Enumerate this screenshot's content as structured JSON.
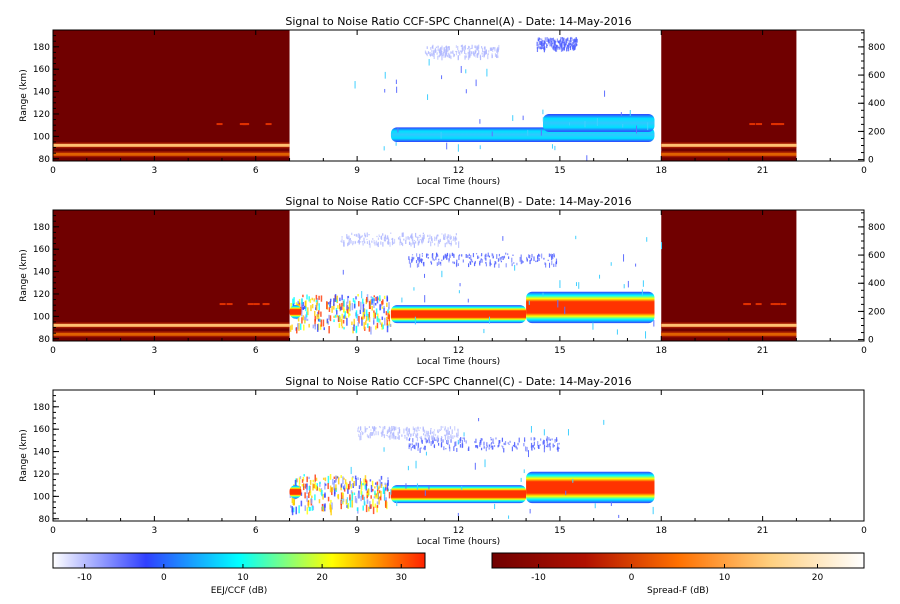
{
  "colors": {
    "background": "#ffffff",
    "axis": "#000000",
    "spread_f_background": "#700000",
    "eej_colormap": [
      "#ffffff",
      "#3040ff",
      "#00ffff",
      "#ffff00",
      "#ff2200"
    ],
    "spreadf_colormap": [
      "#700000",
      "#b01000",
      "#ff7000",
      "#ffd080",
      "#ffffff"
    ]
  },
  "chart_data": [
    {
      "type": "heatmap",
      "title": "Signal to Noise Ratio CCF-SPC Channel(A) - Date: 14-May-2016",
      "xlabel": "Local Time (hours)",
      "ylabel": "Range (km)",
      "xlim": [
        0,
        24
      ],
      "ylim": [
        78,
        195
      ],
      "y2lim": [
        -10,
        920
      ],
      "xticks": [
        "0",
        "3",
        "6",
        "9",
        "12",
        "15",
        "18",
        "21",
        "0"
      ],
      "yticks": [
        "80",
        "100",
        "120",
        "140",
        "160",
        "180"
      ],
      "y2ticks": [
        "0",
        "200",
        "400",
        "600",
        "800"
      ],
      "spread_f_blocks": [
        [
          0,
          7
        ],
        [
          18,
          22
        ]
      ],
      "spread_f_layers": [
        {
          "range_km": 92,
          "intensity": 0.85
        },
        {
          "range_km": 84,
          "intensity": 0.5
        }
      ],
      "eej_regions": [
        {
          "t_start": 10.0,
          "t_end": 17.8,
          "range_low": 95,
          "range_high": 108,
          "peak_db": 5
        },
        {
          "t_start": 14.5,
          "t_end": 17.8,
          "range_low": 104,
          "range_high": 120,
          "peak_db": 8
        }
      ],
      "ccf_regions": [
        {
          "t_start": 11.0,
          "t_end": 13.2,
          "range_km": 177,
          "level_db": -8
        },
        {
          "t_start": 14.3,
          "t_end": 15.5,
          "range_km": 184,
          "level_db": -6
        }
      ]
    },
    {
      "type": "heatmap",
      "title": "Signal to Noise Ratio CCF-SPC Channel(B) - Date: 14-May-2016",
      "xlabel": "Local Time (hours)",
      "ylabel": "Range (km)",
      "xlim": [
        0,
        24
      ],
      "ylim": [
        78,
        195
      ],
      "y2lim": [
        -10,
        920
      ],
      "xticks": [
        "0",
        "3",
        "6",
        "9",
        "12",
        "15",
        "18",
        "21",
        "0"
      ],
      "yticks": [
        "80",
        "100",
        "120",
        "140",
        "160",
        "180"
      ],
      "y2ticks": [
        "0",
        "200",
        "400",
        "600",
        "800"
      ],
      "spread_f_blocks": [
        [
          0,
          7
        ],
        [
          18,
          22
        ]
      ],
      "spread_f_layers": [
        {
          "range_km": 92,
          "intensity": 0.85
        },
        {
          "range_km": 84,
          "intensity": 0.5
        }
      ],
      "eej_regions": [
        {
          "t_start": 10.0,
          "t_end": 14.0,
          "range_low": 94,
          "range_high": 110,
          "peak_db": 30
        },
        {
          "t_start": 14.0,
          "t_end": 17.8,
          "range_low": 94,
          "range_high": 122,
          "peak_db": 30
        },
        {
          "t_start": 7.0,
          "t_end": 7.35,
          "range_low": 98,
          "range_high": 110,
          "peak_db": 30
        }
      ],
      "ccf_regions": [
        {
          "t_start": 10.5,
          "t_end": 15.0,
          "range_km": 152,
          "level_db": -5
        },
        {
          "t_start": 8.5,
          "t_end": 12.0,
          "range_km": 170,
          "level_db": -9
        }
      ],
      "noise_regions": [
        {
          "t_start": 7.0,
          "t_end": 10.0,
          "range_low": 90,
          "range_high": 120
        }
      ]
    },
    {
      "type": "heatmap",
      "title": "Signal to Noise Ratio CCF-SPC Channel(C) - Date: 14-May-2016",
      "xlabel": "Local Time (hours)",
      "ylabel": "Range (km)",
      "xlim": [
        0,
        24
      ],
      "ylim": [
        78,
        195
      ],
      "xticks": [
        "0",
        "3",
        "6",
        "9",
        "12",
        "15",
        "18",
        "21",
        "0"
      ],
      "yticks": [
        "80",
        "100",
        "120",
        "140",
        "160",
        "180"
      ],
      "spread_f_blocks": [],
      "spread_f_layers": [],
      "eej_regions": [
        {
          "t_start": 10.0,
          "t_end": 14.0,
          "range_low": 94,
          "range_high": 110,
          "peak_db": 30
        },
        {
          "t_start": 14.0,
          "t_end": 17.8,
          "range_low": 94,
          "range_high": 122,
          "peak_db": 30
        },
        {
          "t_start": 7.0,
          "t_end": 7.35,
          "range_low": 98,
          "range_high": 110,
          "peak_db": 30
        }
      ],
      "ccf_regions": [
        {
          "t_start": 10.5,
          "t_end": 15.0,
          "range_km": 148,
          "level_db": -5
        },
        {
          "t_start": 9.0,
          "t_end": 12.0,
          "range_km": 158,
          "level_db": -9
        }
      ],
      "noise_regions": [
        {
          "t_start": 7.0,
          "t_end": 10.0,
          "range_low": 90,
          "range_high": 120
        }
      ]
    }
  ],
  "colorbars": [
    {
      "label": "EEJ/CCF (dB)",
      "ticks": [
        "-10",
        "0",
        "10",
        "20",
        "30"
      ],
      "tick_values": [
        -10,
        0,
        10,
        20,
        30
      ],
      "range": [
        -14,
        33
      ]
    },
    {
      "label": "Spread-F (dB)",
      "ticks": [
        "-10",
        "0",
        "10",
        "20"
      ],
      "tick_values": [
        -10,
        0,
        10,
        20
      ],
      "range": [
        -15,
        25
      ]
    }
  ]
}
